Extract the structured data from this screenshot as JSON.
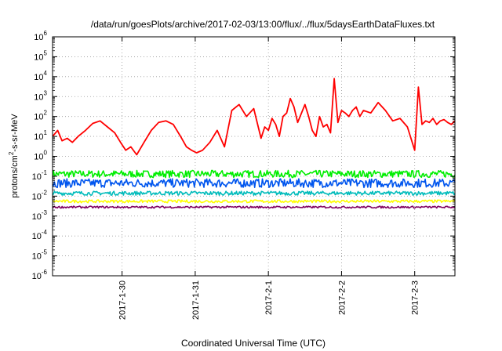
{
  "chart_data": {
    "type": "line",
    "title": "/data/run/goesPlots/archive/2017-02-03/13:00/flux/../flux/5daysEarthDataFluxes.txt",
    "xlabel": "Coordinated Universal Time (UTC)",
    "ylabel_prefix": "protons/cm",
    "ylabel_sup": "2",
    "ylabel_suffix": "-s-sr-MeV",
    "yscale": "log",
    "ylim_exp": [
      -6,
      6
    ],
    "ytick_labels": [
      {
        "base": "10",
        "exp": "-6"
      },
      {
        "base": "10",
        "exp": "-5"
      },
      {
        "base": "10",
        "exp": "-4"
      },
      {
        "base": "10",
        "exp": "-3"
      },
      {
        "base": "10",
        "exp": "-2"
      },
      {
        "base": "10",
        "exp": "-1"
      },
      {
        "base": "10",
        "exp": "0"
      },
      {
        "base": "10",
        "exp": "1"
      },
      {
        "base": "10",
        "exp": "2"
      },
      {
        "base": "10",
        "exp": "3"
      },
      {
        "base": "10",
        "exp": "4"
      },
      {
        "base": "10",
        "exp": "5"
      },
      {
        "base": "10",
        "exp": "6"
      }
    ],
    "xlim_days": [
      -0.95,
      4.55
    ],
    "xticks": [
      {
        "label": "2017-1-30",
        "day": 0
      },
      {
        "label": "2017-1-31",
        "day": 1
      },
      {
        "label": "2017-2-1",
        "day": 2
      },
      {
        "label": "2017-2-2",
        "day": 3
      },
      {
        "label": "2017-2-3",
        "day": 4
      }
    ],
    "grid": true,
    "series": [
      {
        "color": "#ff0000",
        "x": [
          -0.95,
          -0.88,
          -0.82,
          -0.75,
          -0.68,
          -0.6,
          -0.5,
          -0.4,
          -0.3,
          -0.2,
          -0.1,
          -0.02,
          0.05,
          0.12,
          0.18,
          0.2,
          0.3,
          0.4,
          0.5,
          0.6,
          0.7,
          0.8,
          0.88,
          0.95,
          1.02,
          1.1,
          1.2,
          1.3,
          1.4,
          1.5,
          1.6,
          1.7,
          1.8,
          1.9,
          1.95,
          2.0,
          2.05,
          2.1,
          2.15,
          2.2,
          2.25,
          2.3,
          2.35,
          2.4,
          2.5,
          2.55,
          2.6,
          2.65,
          2.7,
          2.75,
          2.8,
          2.85,
          2.9,
          2.95,
          3.0,
          3.05,
          3.1,
          3.15,
          3.2,
          3.25,
          3.3,
          3.4,
          3.5,
          3.6,
          3.7,
          3.8,
          3.9,
          4.0,
          4.05,
          4.1,
          4.15,
          4.2,
          4.25,
          4.3,
          4.35,
          4.4,
          4.45,
          4.5,
          4.55
        ],
        "y": [
          10,
          20,
          6,
          8,
          5,
          10,
          20,
          45,
          60,
          30,
          15,
          5,
          2,
          3,
          1.5,
          1.2,
          5,
          20,
          50,
          60,
          40,
          10,
          3,
          2,
          1.5,
          2,
          5,
          20,
          3,
          200,
          400,
          100,
          250,
          8,
          30,
          20,
          80,
          40,
          10,
          100,
          150,
          800,
          300,
          50,
          400,
          100,
          20,
          10,
          100,
          30,
          40,
          15,
          8000,
          50,
          200,
          150,
          100,
          200,
          300,
          100,
          200,
          150,
          500,
          200,
          60,
          80,
          30,
          2,
          3000,
          40,
          60,
          50,
          80,
          40,
          60,
          70,
          50,
          40,
          60
        ]
      },
      {
        "color": "#00ee00",
        "x": [
          -0.95,
          4.55
        ],
        "y": [
          0.13,
          0.13
        ],
        "noise": 0.18
      },
      {
        "color": "#0055ee",
        "x": [
          -0.95,
          4.55
        ],
        "y": [
          0.045,
          0.045
        ],
        "noise": 0.22
      },
      {
        "color": "#00bbbb",
        "x": [
          -0.95,
          4.55
        ],
        "y": [
          0.014,
          0.014
        ],
        "noise": 0.1
      },
      {
        "color": "#ffff00",
        "x": [
          -0.95,
          4.55
        ],
        "y": [
          0.0055,
          0.0055
        ],
        "noise": 0.07
      },
      {
        "color": "#800060",
        "x": [
          -0.95,
          4.55
        ],
        "y": [
          0.0028,
          0.0028
        ],
        "noise": 0.05
      }
    ]
  }
}
